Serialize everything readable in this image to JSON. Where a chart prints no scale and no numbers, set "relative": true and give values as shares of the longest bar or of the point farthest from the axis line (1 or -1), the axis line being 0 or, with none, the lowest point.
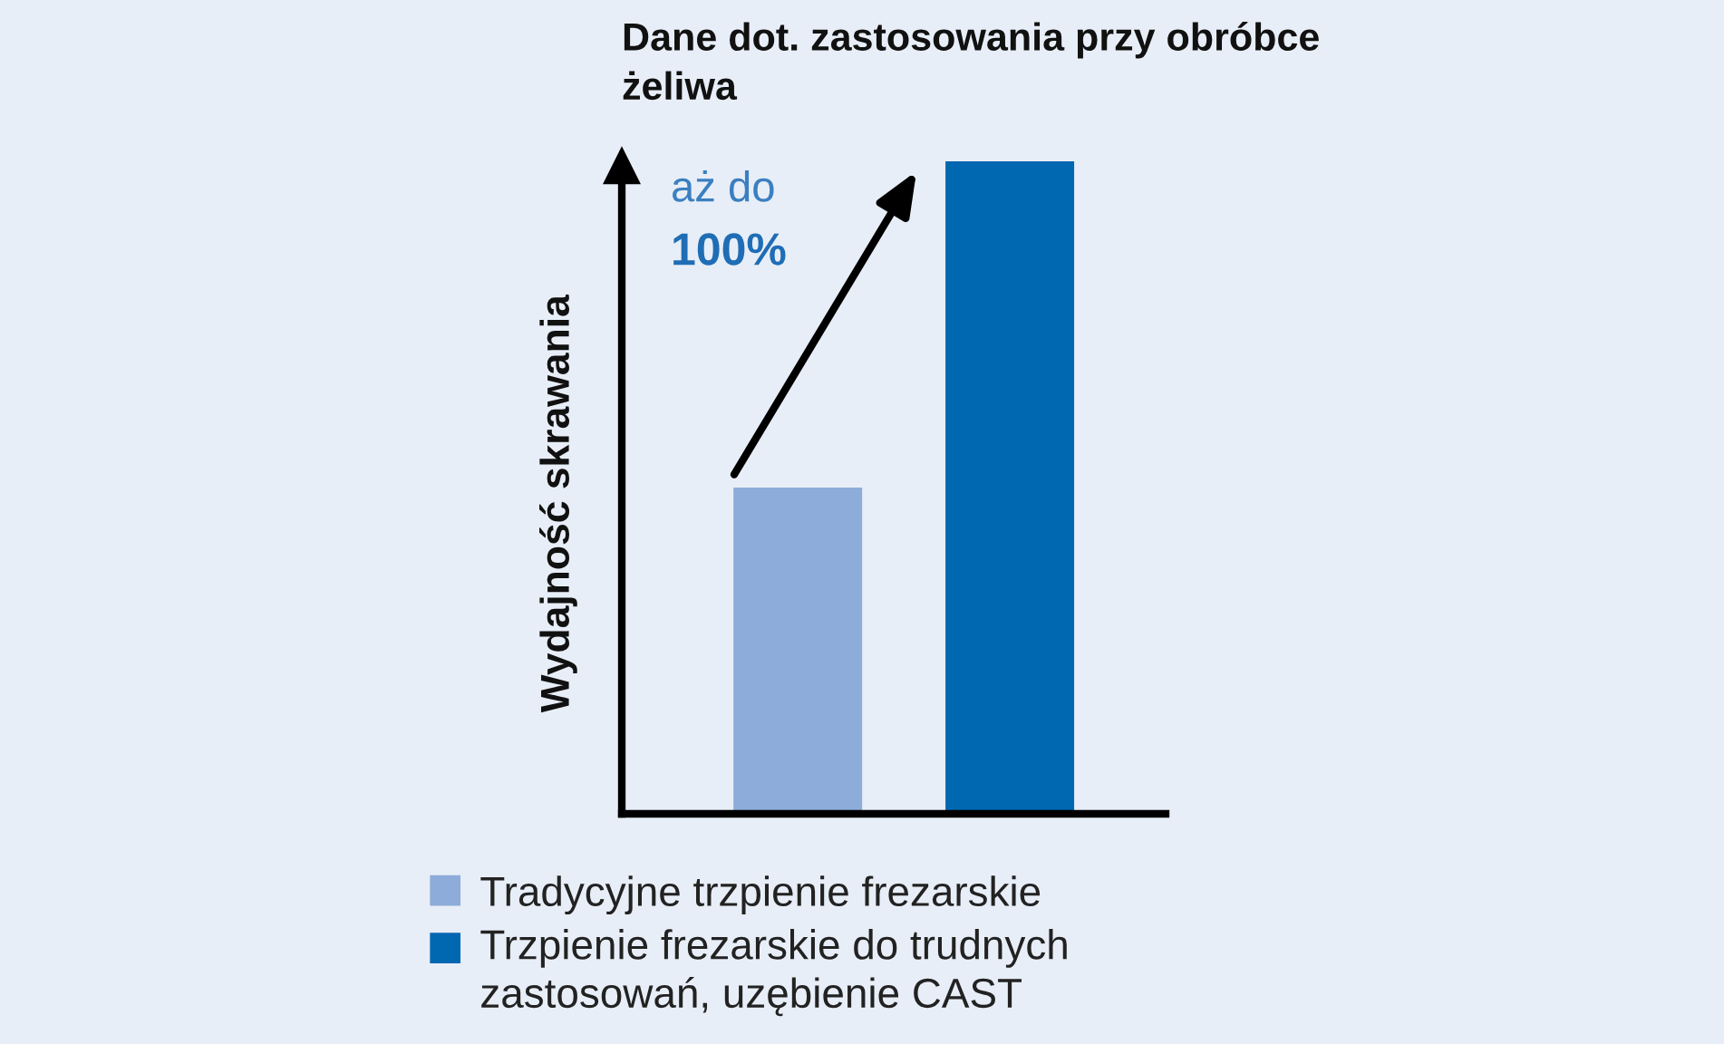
{
  "chart_data": {
    "type": "bar",
    "title": "Dane dot. zastosowania przy obróbce\nżeliwa",
    "ylabel": "Wydajność skrawania",
    "categories": [
      null,
      null
    ],
    "relative": true,
    "stacked": true,
    "series": [
      {
        "name": "Tradycyjne trzpienie frezarskie",
        "color": "#8dacd9",
        "values": [
          0.5,
          null
        ]
      },
      {
        "name": "Trzpienie frezarskie do trudnych\nzastosowań, uzębienie CAST",
        "color": "#0067b1",
        "values": [
          null,
          1
        ]
      }
    ],
    "annotations": [
      "aż do",
      "100%"
    ],
    "legend": "bottom"
  }
}
